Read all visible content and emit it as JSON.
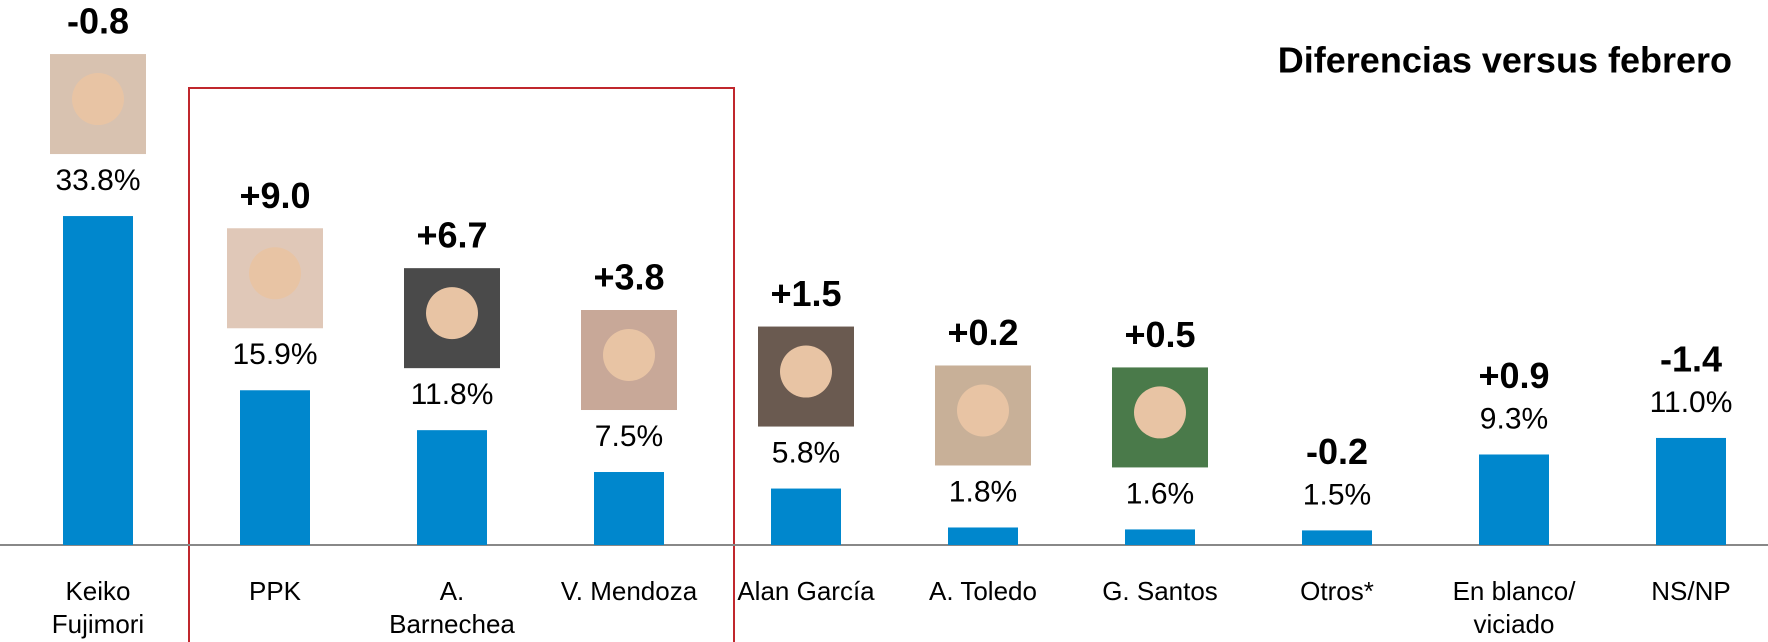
{
  "chart_data": {
    "type": "bar",
    "title": "Diferencias versus febrero",
    "categories": [
      "Keiko\nFujimori",
      "PPK",
      "A.\nBarnechea",
      "V. Mendoza",
      "Alan García",
      "A. Toledo",
      "G. Santos",
      "Otros*",
      "En blanco/\nviciado",
      "NS/NP"
    ],
    "values": [
      33.8,
      15.9,
      11.8,
      7.5,
      5.8,
      1.8,
      1.6,
      1.5,
      9.3,
      11.0
    ],
    "value_labels": [
      "33.8%",
      "15.9%",
      "11.8%",
      "7.5%",
      "5.8%",
      "1.8%",
      "1.6%",
      "1.5%",
      "9.3%",
      "11.0%"
    ],
    "annotations": [
      "-0.8",
      "+9.0",
      "+6.7",
      "+3.8",
      "+1.5",
      "+0.2",
      "+0.5",
      "-0.2",
      "+0.9",
      "-1.4"
    ],
    "color": "#0087cd",
    "ylim": [
      0,
      56
    ]
  }
}
